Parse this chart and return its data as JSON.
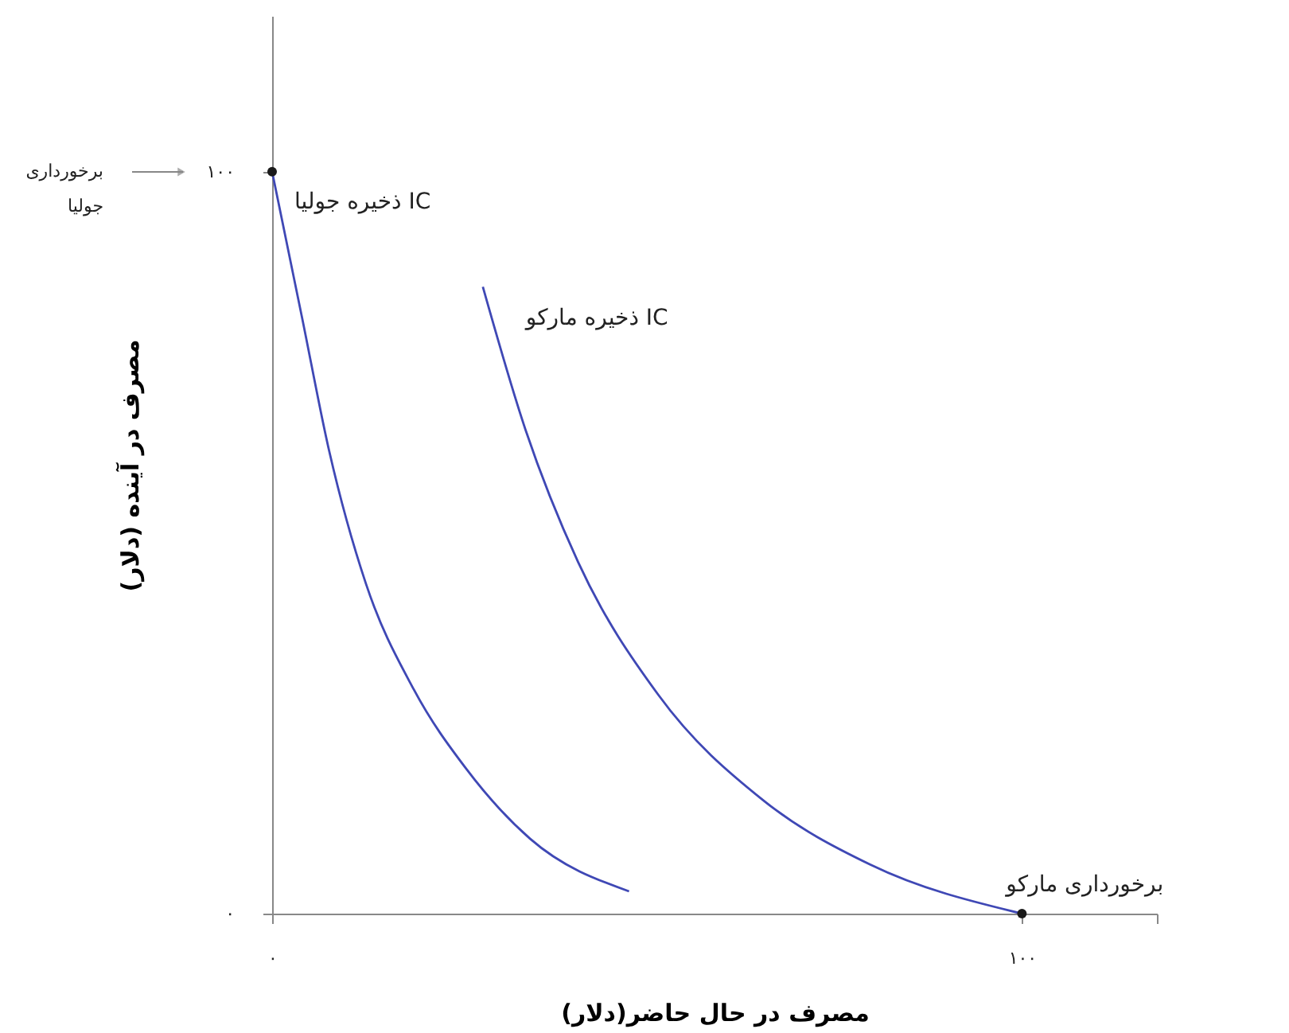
{
  "chart_data": {
    "type": "line",
    "xlabel": "مصرف در حال حاضر(دلار)",
    "ylabel": "مصرف در آینده (دلار)",
    "xlim": [
      0,
      118
    ],
    "ylim": [
      0,
      121
    ],
    "xticks": [
      {
        "value": 0,
        "label": "۰"
      },
      {
        "value": 100,
        "label": "۱۰۰"
      },
      {
        "value": 118,
        "label": null
      }
    ],
    "yticks": [
      {
        "value": 0,
        "label": "۰"
      },
      {
        "value": 100,
        "label": "۱۰۰"
      }
    ],
    "grid": false,
    "line_style": "solid",
    "series": [
      {
        "color": "#3f48b5",
        "x": [
          0,
          4.0,
          7.6,
          12.5,
          18.9,
          25.9,
          34.4,
          47.6
        ],
        "values": [
          100,
          80.3,
          62.4,
          44.5,
          30.2,
          19.5,
          10.1,
          3.0
        ]
      },
      {
        "color": "#3f48b5",
        "x": [
          28.1,
          33.8,
          40.8,
          51.5,
          65.6,
          79.8,
          100
        ],
        "values": [
          84.5,
          65.2,
          47.4,
          29.5,
          15.2,
          6.6,
          0
        ]
      },
      {
        "type": "scatter",
        "marker": "circle",
        "color": "#1a1a1a",
        "x": [
          0,
          100
        ],
        "values": [
          100,
          0
        ]
      }
    ],
    "annotations": [
      "برخورداری جولیا",
      {
        "text": "IC ذخیره جولیا",
        "x": 0,
        "y": 100
      },
      {
        "text": "IC ذخیره مارکو",
        "x": 28.1,
        "y": 84.5
      },
      {
        "text": "برخورداری مارکو",
        "x": 100,
        "y": 0
      }
    ]
  }
}
